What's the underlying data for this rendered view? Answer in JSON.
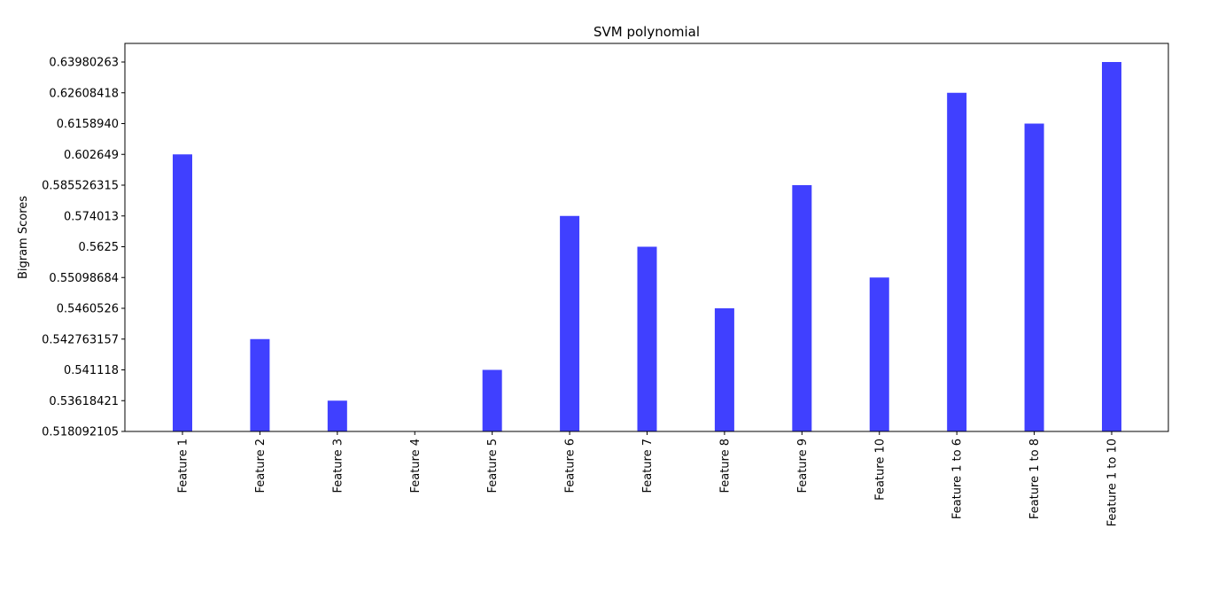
{
  "chart_data": {
    "type": "bar",
    "title": "SVM polynomial",
    "xlabel": "",
    "ylabel": "Bigram Scores",
    "categories": [
      "Feature 1",
      "Feature 2",
      "Feature 3",
      "Feature 4",
      "Feature 5",
      "Feature 6",
      "Feature 7",
      "Feature 8",
      "Feature 9",
      "Feature 10",
      "Feature 1 to 6",
      "Feature 1 to 8",
      "Feature 1 to 10"
    ],
    "values": [
      "0.602649",
      "0.542763157",
      "0.53618421",
      "0.518092105",
      "0.541118",
      "0.574013",
      "0.5625",
      "0.5460526",
      "0.585526315",
      "0.55098684",
      "0.62608418",
      "0.6158940",
      "0.63980263"
    ],
    "y_tick_labels": [
      "0.518092105",
      "0.53618421",
      "0.541118",
      "0.542763157",
      "0.5460526",
      "0.55098684",
      "0.5625",
      "0.574013",
      "0.585526315",
      "0.602649",
      "0.6158940",
      "0.62608418",
      "0.63980263"
    ],
    "y_axis_scale": "categorical (each tick is one distinct score value, evenly spaced)",
    "grid": false,
    "legend": "none",
    "bar_color": "#4040ff"
  }
}
